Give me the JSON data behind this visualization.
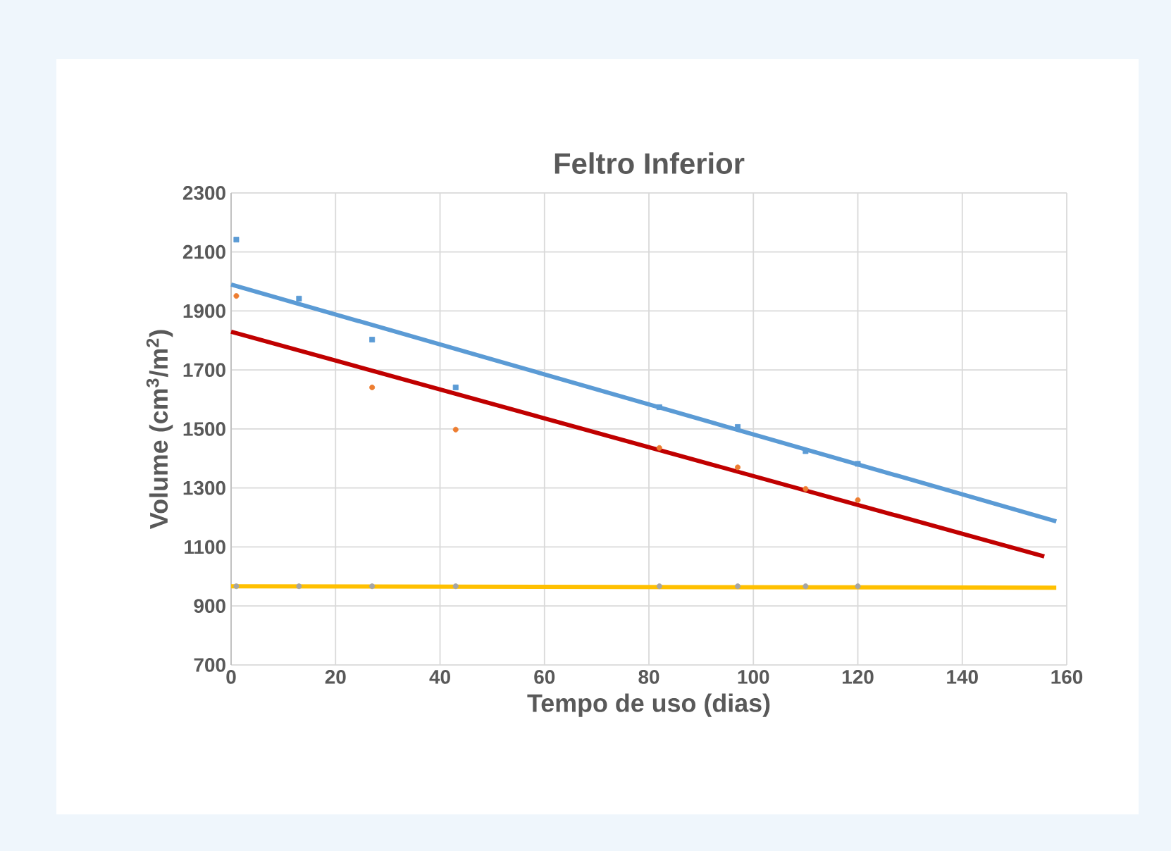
{
  "chart_data": {
    "type": "scatter",
    "title": "Feltro Inferior",
    "xlabel": "Tempo de uso (dias)",
    "ylabel": "Volume (cm$^{3}$/m$^{2}$)",
    "xlim": [
      0,
      160
    ],
    "xticks": [
      0,
      20,
      40,
      60,
      80,
      100,
      120,
      140,
      160
    ],
    "ylim": [
      700,
      2300
    ],
    "yticks": [
      700,
      900,
      1100,
      1300,
      1500,
      1700,
      1900,
      2100,
      2300
    ],
    "grid": true,
    "series": [
      {
        "marker": "square",
        "color": "#5b9bd5",
        "x": [
          1,
          13,
          27,
          43,
          82,
          97,
          110,
          120
        ],
        "values": [
          2142,
          1942,
          1803,
          1641,
          1574,
          1507,
          1425,
          1382
        ]
      },
      {
        "marker": "circle",
        "color": "#ed7d31",
        "x": [
          1,
          13,
          27,
          43,
          82,
          97,
          110,
          120
        ],
        "values": [
          1951,
          null,
          1641,
          1498,
          1436,
          1370,
          1297,
          1259
        ]
      },
      {
        "marker": "circle",
        "color": "#a5a5a5",
        "x": [
          1,
          13,
          27,
          43,
          82,
          97,
          110,
          120
        ],
        "values": [
          967,
          967,
          967,
          967,
          967,
          967,
          967,
          967
        ]
      },
      {
        "type": "line",
        "marker": "none",
        "color": "#5b9bd5",
        "x": [
          0,
          158
        ],
        "values": [
          1990,
          1187
        ]
      },
      {
        "type": "line",
        "marker": "none",
        "color": "#c00000",
        "x": [
          0,
          155.7
        ],
        "values": [
          1830,
          1068
        ]
      },
      {
        "type": "line",
        "marker": "none",
        "color": "#ffc000",
        "x": [
          0,
          158
        ],
        "values": [
          967,
          962
        ]
      }
    ]
  }
}
